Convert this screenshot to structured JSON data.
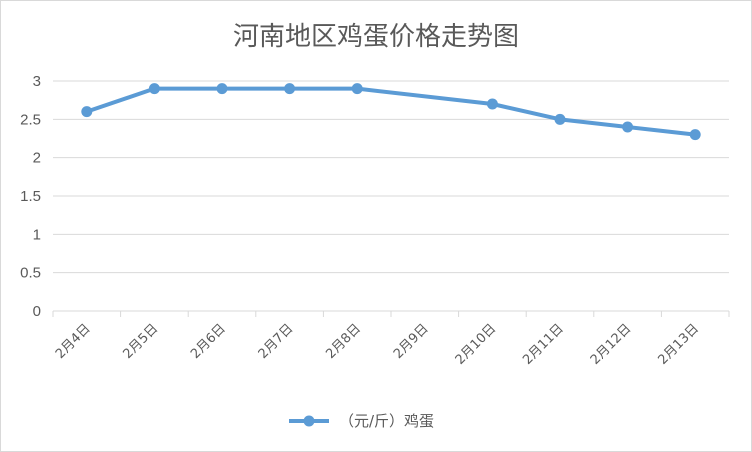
{
  "chart_data": {
    "type": "line",
    "title": "河南地区鸡蛋价格走势图",
    "xlabel": "",
    "ylabel": "",
    "categories": [
      "2月4日",
      "2月5日",
      "2月6日",
      "2月7日",
      "2月8日",
      "2月9日",
      "2月10日",
      "2月11日",
      "2月12日",
      "2月13日"
    ],
    "y_ticks": [
      "0",
      "0.5",
      "1",
      "1.5",
      "2",
      "2.5",
      "3"
    ],
    "ylim": [
      0,
      3
    ],
    "grid": true,
    "legend_position": "bottom",
    "series": [
      {
        "name": "（元/斤）鸡蛋",
        "values": [
          2.6,
          2.9,
          2.9,
          2.9,
          2.9,
          null,
          2.7,
          2.5,
          2.4,
          2.3
        ],
        "color": "#5B9BD5"
      }
    ]
  }
}
